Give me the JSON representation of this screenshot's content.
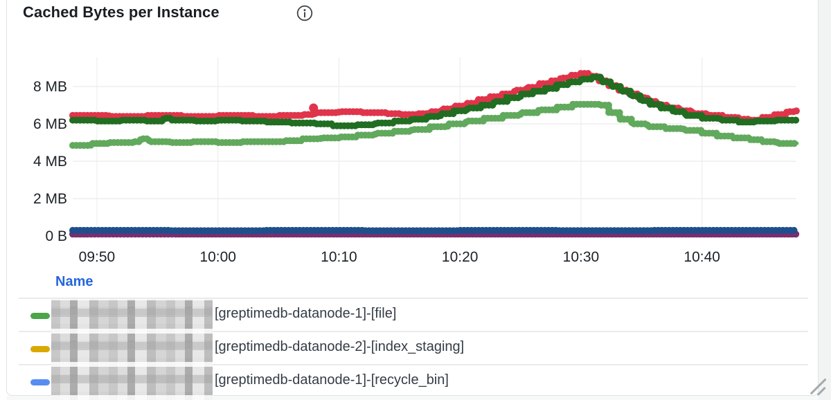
{
  "panel": {
    "title": "Cached Bytes per Instance"
  },
  "legend": {
    "header": "Name",
    "rows": [
      {
        "color": "#4da44b",
        "label": "[greptimedb-datanode-1]-[file]"
      },
      {
        "color": "#dba800",
        "label": "[greptimedb-datanode-2]-[index_staging]"
      },
      {
        "color": "#578df2",
        "label": "[greptimedb-datanode-1]-[recycle_bin]"
      }
    ]
  },
  "chart_data": {
    "type": "scatter",
    "title": "Cached Bytes per Instance",
    "xlabel": "",
    "ylabel": "",
    "y_unit": "bytes",
    "x_axis": {
      "domain_minutes": [
        0,
        59.8
      ],
      "ticks": [
        {
          "label": "09:50",
          "t": 2
        },
        {
          "label": "10:00",
          "t": 12
        },
        {
          "label": "10:10",
          "t": 22
        },
        {
          "label": "10:20",
          "t": 32
        },
        {
          "label": "10:30",
          "t": 42
        },
        {
          "label": "10:40",
          "t": 52
        }
      ]
    },
    "y_axis": {
      "max": 10,
      "ticks": [
        {
          "label": "0 B",
          "value": 0
        },
        {
          "label": "2 MB",
          "value": 2
        },
        {
          "label": "4 MB",
          "value": 4
        },
        {
          "label": "6 MB",
          "value": 6
        },
        {
          "label": "8 MB",
          "value": 8
        }
      ]
    },
    "series": [
      {
        "name": "purple",
        "color": "#7b2d6e",
        "points": [
          [
            0,
            0.1
          ],
          [
            59.8,
            0.1
          ]
        ]
      },
      {
        "name": "navy",
        "color": "#1e4f8c",
        "points": [
          [
            0,
            0.3
          ],
          [
            8,
            0.28
          ],
          [
            16,
            0.3
          ],
          [
            24,
            0.28
          ],
          [
            32,
            0.3
          ],
          [
            40,
            0.29
          ],
          [
            48,
            0.3
          ],
          [
            59.8,
            0.3
          ]
        ]
      },
      {
        "name": "red",
        "color": "#e0344a",
        "points": [
          [
            0,
            6.45
          ],
          [
            3,
            6.4
          ],
          [
            6,
            6.45
          ],
          [
            9,
            6.4
          ],
          [
            12,
            6.45
          ],
          [
            15,
            6.4
          ],
          [
            17,
            6.45
          ],
          [
            19,
            6.5
          ],
          [
            20,
            6.6
          ],
          [
            22,
            6.65
          ],
          [
            24,
            6.6
          ],
          [
            26,
            6.55
          ],
          [
            27,
            6.5
          ],
          [
            28.5,
            6.55
          ],
          [
            29.5,
            6.65
          ],
          [
            30.5,
            6.8
          ],
          [
            31.5,
            6.95
          ],
          [
            32.5,
            7.1
          ],
          [
            33.5,
            7.3
          ],
          [
            34.5,
            7.45
          ],
          [
            35.5,
            7.6
          ],
          [
            36.5,
            7.8
          ],
          [
            37.5,
            7.95
          ],
          [
            38.5,
            8.15
          ],
          [
            39.5,
            8.3
          ],
          [
            40.3,
            8.45
          ],
          [
            41.1,
            8.6
          ],
          [
            41.9,
            8.7
          ],
          [
            42.7,
            8.55
          ],
          [
            43.5,
            8.3
          ],
          [
            44.3,
            8.05
          ],
          [
            45.1,
            7.8
          ],
          [
            45.9,
            7.6
          ],
          [
            46.7,
            7.4
          ],
          [
            47.5,
            7.2
          ],
          [
            48.3,
            7.0
          ],
          [
            49.2,
            6.85
          ],
          [
            50.2,
            6.7
          ],
          [
            51.2,
            6.55
          ],
          [
            52.5,
            6.45
          ],
          [
            53.8,
            6.35
          ],
          [
            55,
            6.25
          ],
          [
            56,
            6.2
          ],
          [
            57,
            6.35
          ],
          [
            58,
            6.5
          ],
          [
            59,
            6.65
          ],
          [
            59.8,
            6.7
          ]
        ]
      },
      {
        "name": "dark_green",
        "color": "#216d21",
        "points": [
          [
            0,
            6.2
          ],
          [
            2,
            6.15
          ],
          [
            4,
            6.2
          ],
          [
            6,
            6.15
          ],
          [
            7.5,
            6.3
          ],
          [
            8.2,
            6.2
          ],
          [
            10,
            6.15
          ],
          [
            12,
            6.2
          ],
          [
            14,
            6.15
          ],
          [
            16,
            6.1
          ],
          [
            18,
            6.05
          ],
          [
            20,
            6.0
          ],
          [
            21.5,
            5.9
          ],
          [
            23.5,
            5.95
          ],
          [
            25,
            6.05
          ],
          [
            26.5,
            6.15
          ],
          [
            28,
            6.25
          ],
          [
            29.3,
            6.4
          ],
          [
            30.4,
            6.55
          ],
          [
            31.5,
            6.7
          ],
          [
            32.6,
            6.85
          ],
          [
            33.7,
            7.0
          ],
          [
            34.8,
            7.2
          ],
          [
            35.9,
            7.4
          ],
          [
            37,
            7.6
          ],
          [
            38,
            7.75
          ],
          [
            39,
            7.9
          ],
          [
            40,
            8.1
          ],
          [
            41,
            8.25
          ],
          [
            42,
            8.4
          ],
          [
            42.9,
            8.5
          ],
          [
            43.7,
            8.25
          ],
          [
            44.5,
            8.0
          ],
          [
            45.3,
            7.75
          ],
          [
            46.1,
            7.5
          ],
          [
            46.9,
            7.25
          ],
          [
            47.7,
            7.05
          ],
          [
            48.6,
            6.85
          ],
          [
            49.6,
            6.65
          ],
          [
            50.6,
            6.45
          ],
          [
            52,
            6.3
          ],
          [
            53.5,
            6.2
          ],
          [
            55,
            6.1
          ],
          [
            56.5,
            6.15
          ],
          [
            58,
            6.2
          ],
          [
            59.8,
            6.2
          ]
        ]
      },
      {
        "name": "light_green",
        "color": "#61a95c",
        "points": [
          [
            0,
            4.85
          ],
          [
            1.5,
            4.95
          ],
          [
            3,
            5.0
          ],
          [
            5,
            5.05
          ],
          [
            5.6,
            5.2
          ],
          [
            6.3,
            5.05
          ],
          [
            8,
            5.0
          ],
          [
            10,
            5.05
          ],
          [
            12,
            5.0
          ],
          [
            14,
            5.05
          ],
          [
            16,
            5.05
          ],
          [
            17.5,
            5.1
          ],
          [
            19,
            5.2
          ],
          [
            20.5,
            5.25
          ],
          [
            22,
            5.3
          ],
          [
            23.5,
            5.4
          ],
          [
            25,
            5.5
          ],
          [
            26.5,
            5.6
          ],
          [
            28,
            5.7
          ],
          [
            29.5,
            5.85
          ],
          [
            31,
            6.0
          ],
          [
            32.5,
            6.15
          ],
          [
            34,
            6.3
          ],
          [
            35.5,
            6.45
          ],
          [
            37,
            6.6
          ],
          [
            38.5,
            6.75
          ],
          [
            40,
            6.9
          ],
          [
            41.3,
            7.05
          ],
          [
            43.5,
            7.0
          ],
          [
            44.3,
            6.6
          ],
          [
            45.2,
            6.25
          ],
          [
            46.2,
            6.0
          ],
          [
            47.5,
            5.85
          ],
          [
            49,
            5.75
          ],
          [
            50.5,
            5.65
          ],
          [
            52,
            5.5
          ],
          [
            53.2,
            5.35
          ],
          [
            54.5,
            5.25
          ],
          [
            56,
            5.15
          ],
          [
            57,
            5.05
          ],
          [
            58.2,
            4.95
          ],
          [
            59.8,
            4.9
          ]
        ]
      }
    ],
    "outliers": [
      {
        "series": "red",
        "t": 19.9,
        "value": 6.85
      }
    ],
    "grid": true,
    "legend_position": "bottom-table"
  }
}
